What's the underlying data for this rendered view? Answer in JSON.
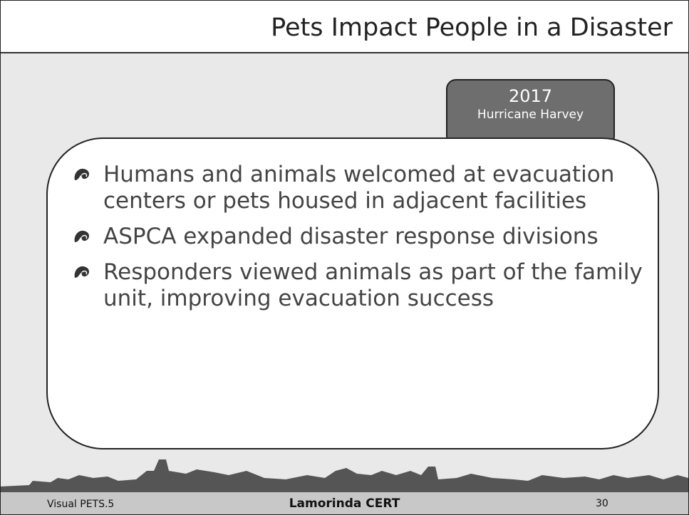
{
  "header": {
    "title": "Pets Impact People in a Disaster"
  },
  "badge": {
    "year": "2017",
    "event": "Hurricane Harvey"
  },
  "bullets": [
    "Humans and animals welcomed at evacuation centers or pets housed in adjacent facilities",
    "ASPCA expanded disaster response divisions",
    "Responders viewed animals as part of the family unit, improving evacuation success"
  ],
  "footer": {
    "left": "Visual PETS.5",
    "center": "Lamorinda CERT",
    "right": "30"
  }
}
